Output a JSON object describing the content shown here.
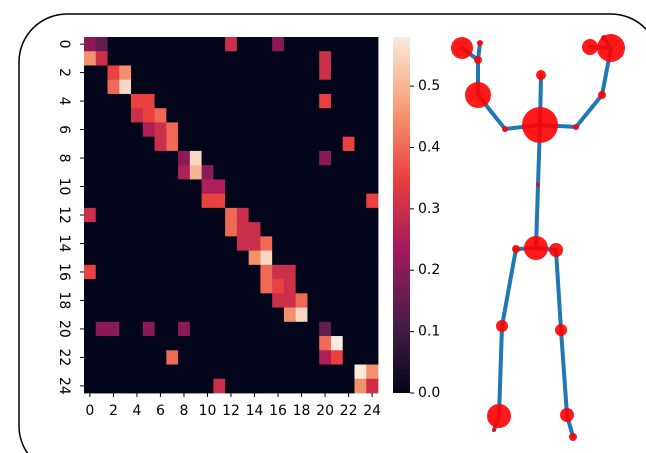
{
  "chart_data": {
    "type": "heatmap",
    "colormap": "rocket",
    "xticks": [
      0,
      2,
      4,
      6,
      8,
      10,
      12,
      14,
      16,
      18,
      20,
      22,
      24
    ],
    "yticks": [
      0,
      2,
      4,
      6,
      8,
      10,
      12,
      14,
      16,
      18,
      20,
      22,
      24
    ],
    "clim": [
      0,
      0.58
    ],
    "cticks": [
      {
        "value": 0,
        "label": "0.0"
      },
      {
        "value": 0.1,
        "label": "0.1"
      },
      {
        "value": 0.2,
        "label": "0.2"
      },
      {
        "value": 0.3,
        "label": "0.3"
      },
      {
        "value": 0.4,
        "label": "0.4"
      },
      {
        "value": 0.5,
        "label": "0.5"
      }
    ],
    "matrix": [
      [
        0.2,
        0.15,
        0,
        0,
        0,
        0,
        0,
        0,
        0,
        0,
        0,
        0,
        0.3,
        0,
        0,
        0,
        0.2,
        0,
        0,
        0,
        0,
        0,
        0,
        0,
        0
      ],
      [
        0.45,
        0.3,
        0,
        0,
        0,
        0,
        0,
        0,
        0,
        0,
        0,
        0,
        0,
        0,
        0,
        0,
        0,
        0,
        0,
        0,
        0.3,
        0,
        0,
        0,
        0
      ],
      [
        0,
        0,
        0.35,
        0.45,
        0,
        0,
        0,
        0,
        0,
        0,
        0,
        0,
        0,
        0,
        0,
        0,
        0,
        0,
        0,
        0,
        0.3,
        0,
        0,
        0,
        0
      ],
      [
        0,
        0,
        0.4,
        0.55,
        0,
        0,
        0,
        0,
        0,
        0,
        0,
        0,
        0,
        0,
        0,
        0,
        0,
        0,
        0,
        0,
        0,
        0,
        0,
        0,
        0
      ],
      [
        0,
        0,
        0,
        0,
        0.35,
        0.35,
        0,
        0,
        0,
        0,
        0,
        0,
        0,
        0,
        0,
        0,
        0,
        0,
        0,
        0,
        0.35,
        0,
        0,
        0,
        0
      ],
      [
        0,
        0,
        0,
        0,
        0.3,
        0.35,
        0.4,
        0,
        0,
        0,
        0,
        0,
        0,
        0,
        0,
        0,
        0,
        0,
        0,
        0,
        0,
        0,
        0,
        0,
        0
      ],
      [
        0,
        0,
        0,
        0,
        0,
        0.25,
        0.3,
        0.4,
        0,
        0,
        0,
        0,
        0,
        0,
        0,
        0,
        0,
        0,
        0,
        0,
        0,
        0,
        0,
        0,
        0
      ],
      [
        0,
        0,
        0,
        0,
        0,
        0,
        0.3,
        0.4,
        0,
        0,
        0,
        0,
        0,
        0,
        0,
        0,
        0,
        0,
        0,
        0,
        0,
        0,
        0.35,
        0,
        0
      ],
      [
        0,
        0,
        0,
        0,
        0,
        0,
        0,
        0,
        0.2,
        0.55,
        0,
        0,
        0,
        0,
        0,
        0,
        0,
        0,
        0,
        0,
        0.2,
        0,
        0,
        0,
        0
      ],
      [
        0,
        0,
        0,
        0,
        0,
        0,
        0,
        0,
        0.25,
        0.5,
        0.2,
        0,
        0,
        0,
        0,
        0,
        0,
        0,
        0,
        0,
        0,
        0,
        0,
        0,
        0
      ],
      [
        0,
        0,
        0,
        0,
        0,
        0,
        0,
        0,
        0,
        0,
        0.25,
        0.25,
        0,
        0,
        0,
        0,
        0,
        0,
        0,
        0,
        0,
        0,
        0,
        0,
        0
      ],
      [
        0,
        0,
        0,
        0,
        0,
        0,
        0,
        0,
        0,
        0,
        0.35,
        0.35,
        0,
        0,
        0,
        0,
        0,
        0,
        0,
        0,
        0,
        0,
        0,
        0,
        0.35
      ],
      [
        0.3,
        0,
        0,
        0,
        0,
        0,
        0,
        0,
        0,
        0,
        0,
        0,
        0.4,
        0.3,
        0,
        0,
        0,
        0,
        0,
        0,
        0,
        0,
        0,
        0,
        0
      ],
      [
        0,
        0,
        0,
        0,
        0,
        0,
        0,
        0,
        0,
        0,
        0,
        0,
        0.4,
        0.3,
        0.3,
        0,
        0,
        0,
        0,
        0,
        0,
        0,
        0,
        0,
        0
      ],
      [
        0,
        0,
        0,
        0,
        0,
        0,
        0,
        0,
        0,
        0,
        0,
        0,
        0,
        0.3,
        0.3,
        0.4,
        0,
        0,
        0,
        0,
        0,
        0,
        0,
        0,
        0
      ],
      [
        0,
        0,
        0,
        0,
        0,
        0,
        0,
        0,
        0,
        0,
        0,
        0,
        0,
        0,
        0.45,
        0.55,
        0,
        0,
        0,
        0,
        0,
        0,
        0,
        0,
        0
      ],
      [
        0.35,
        0,
        0,
        0,
        0,
        0,
        0,
        0,
        0,
        0,
        0,
        0,
        0,
        0,
        0,
        0.4,
        0.3,
        0.3,
        0,
        0,
        0,
        0,
        0,
        0,
        0
      ],
      [
        0,
        0,
        0,
        0,
        0,
        0,
        0,
        0,
        0,
        0,
        0,
        0,
        0,
        0,
        0,
        0.4,
        0.35,
        0.3,
        0,
        0,
        0,
        0,
        0,
        0,
        0
      ],
      [
        0,
        0,
        0,
        0,
        0,
        0,
        0,
        0,
        0,
        0,
        0,
        0,
        0,
        0,
        0,
        0,
        0.3,
        0.3,
        0.4,
        0,
        0,
        0,
        0,
        0,
        0
      ],
      [
        0,
        0,
        0,
        0,
        0,
        0,
        0,
        0,
        0,
        0,
        0,
        0,
        0,
        0,
        0,
        0,
        0,
        0.45,
        0.55,
        0,
        0,
        0,
        0,
        0,
        0
      ],
      [
        0,
        0.2,
        0.2,
        0,
        0,
        0.2,
        0,
        0,
        0.2,
        0,
        0,
        0,
        0,
        0,
        0,
        0,
        0,
        0,
        0,
        0,
        0.15,
        0,
        0,
        0,
        0
      ],
      [
        0,
        0,
        0,
        0,
        0,
        0,
        0,
        0,
        0,
        0,
        0,
        0,
        0,
        0,
        0,
        0,
        0,
        0,
        0,
        0,
        0.4,
        0.58,
        0,
        0,
        0
      ],
      [
        0,
        0,
        0,
        0,
        0,
        0,
        0,
        0.4,
        0,
        0,
        0,
        0,
        0,
        0,
        0,
        0,
        0,
        0,
        0,
        0,
        0.25,
        0.35,
        0,
        0,
        0
      ],
      [
        0,
        0,
        0,
        0,
        0,
        0,
        0,
        0,
        0,
        0,
        0,
        0,
        0,
        0,
        0,
        0,
        0,
        0,
        0,
        0,
        0,
        0,
        0,
        0.58,
        0.45
      ],
      [
        0,
        0,
        0,
        0,
        0,
        0,
        0,
        0,
        0,
        0,
        0,
        0.3,
        0,
        0,
        0,
        0,
        0,
        0,
        0,
        0,
        0,
        0,
        0,
        0.45,
        0.3
      ]
    ]
  }
}
